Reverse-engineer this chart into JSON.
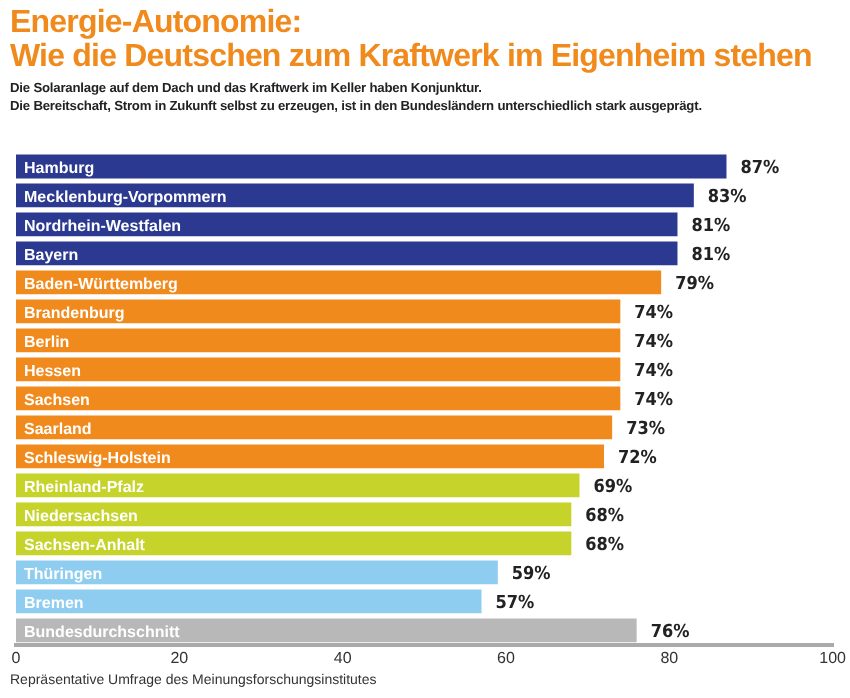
{
  "chart_data": {
    "type": "bar",
    "orientation": "horizontal",
    "title": "Energie-Autonomie:\nWie die Deutschen zum Kraftwerk im Eigenheim stehen",
    "subtitle": "Die Solaranlage auf dem Dach und das Kraftwerk im Keller haben Konjunktur.\nDie Bereitschaft, Strom in Zukunft selbst zu erzeugen, ist in den Bundesländern unterschiedlich stark ausgeprägt.",
    "categories": [
      "Hamburg",
      "Mecklenburg-Vorpommern",
      "Nordrhein-Westfalen",
      "Bayern",
      "Baden-Württemberg",
      "Brandenburg",
      "Berlin",
      "Hessen",
      "Sachsen",
      "Saarland",
      "Schleswig-Holstein",
      "Rheinland-Pfalz",
      "Niedersachsen",
      "Sachsen-Anhalt",
      "Thüringen",
      "Bremen",
      "Bundesdurchschnitt"
    ],
    "values": [
      87,
      83,
      81,
      81,
      79,
      74,
      74,
      74,
      74,
      73,
      72,
      69,
      68,
      68,
      59,
      57,
      76
    ],
    "value_labels": [
      "87%",
      "83%",
      "81%",
      "81%",
      "79%",
      "74%",
      "74%",
      "74%",
      "74%",
      "73%",
      "72%",
      "69%",
      "68%",
      "68%",
      "59%",
      "57%",
      "76%"
    ],
    "colors": [
      "#2b3990",
      "#2b3990",
      "#2b3990",
      "#2b3990",
      "#f18a1c",
      "#f18a1c",
      "#f18a1c",
      "#f18a1c",
      "#f18a1c",
      "#f18a1c",
      "#f18a1c",
      "#c5d32a",
      "#c5d32a",
      "#c5d32a",
      "#8fcdf0",
      "#8fcdf0",
      "#b8b8b8"
    ],
    "xlim": [
      0,
      100
    ],
    "xticks": [
      0,
      20,
      40,
      60,
      80,
      100
    ],
    "grid": false,
    "legend": false,
    "annotations": [
      "Repräsentative Umfrage des Meinungsforschungsinstitutes"
    ]
  }
}
